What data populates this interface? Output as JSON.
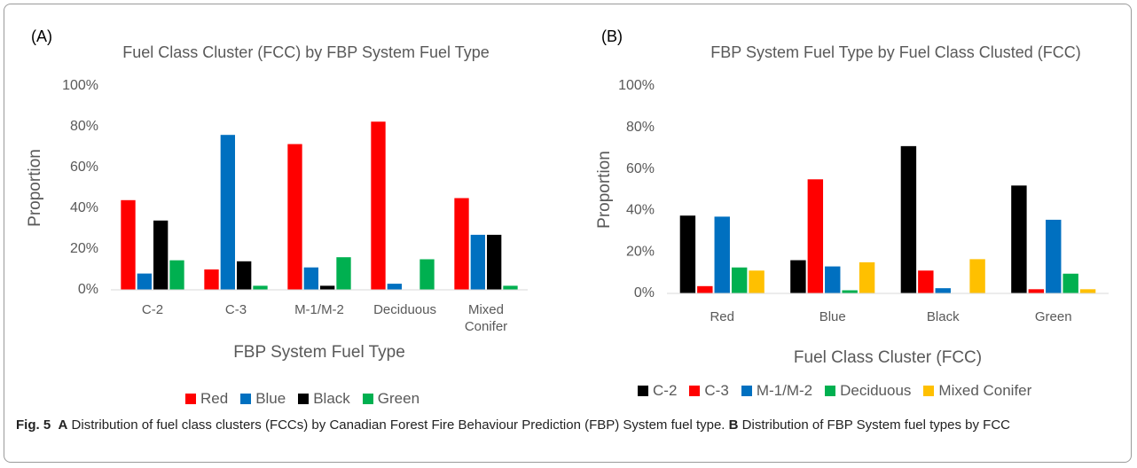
{
  "chart_data": [
    {
      "type": "bar",
      "panel_label": "(A)",
      "title": "Fuel Class Cluster (FCC) by FBP System Fuel Type",
      "x_label": "FBP System Fuel Type",
      "y_label": "Proportion",
      "categories": [
        "C-2",
        "C-3",
        "M-1/M-2",
        "Deciduous",
        "Mixed Conifer"
      ],
      "series": [
        {
          "name": "Red",
          "color": "#ff0000",
          "values": [
            44,
            10,
            71.5,
            82.5,
            45
          ]
        },
        {
          "name": "Blue",
          "color": "#0070c0",
          "values": [
            8,
            76,
            11,
            3,
            27
          ]
        },
        {
          "name": "Black",
          "color": "#000000",
          "values": [
            34,
            14,
            2,
            0,
            27
          ]
        },
        {
          "name": "Green",
          "color": "#00b050",
          "values": [
            14.5,
            2,
            16,
            15,
            2
          ]
        }
      ],
      "ylim": [
        0,
        100
      ],
      "yticks": [
        {
          "value": 0,
          "label": "0%"
        },
        {
          "value": 20,
          "label": "20%"
        },
        {
          "value": 40,
          "label": "40%"
        },
        {
          "value": 60,
          "label": "60%"
        },
        {
          "value": 80,
          "label": "80%"
        },
        {
          "value": 100,
          "label": "100%"
        }
      ],
      "grid": false,
      "legend": "bottom"
    },
    {
      "type": "bar",
      "panel_label": "(B)",
      "title": "FBP System Fuel Type by Fuel Class Clusted (FCC)",
      "x_label": "Fuel Class Cluster (FCC)",
      "y_label": "Proportion",
      "categories": [
        "Red",
        "Blue",
        "Black",
        "Green"
      ],
      "series": [
        {
          "name": "C-2",
          "color": "#000000",
          "values": [
            37.5,
            16,
            71,
            52
          ]
        },
        {
          "name": "C-3",
          "color": "#ff0000",
          "values": [
            3.5,
            55,
            11,
            2
          ]
        },
        {
          "name": "M-1/M-2",
          "color": "#0070c0",
          "values": [
            37,
            13,
            2.5,
            35.5
          ]
        },
        {
          "name": "Deciduous",
          "color": "#00b050",
          "values": [
            12.5,
            1.5,
            0,
            9.5
          ]
        },
        {
          "name": "Mixed Conifer",
          "color": "#ffc000",
          "values": [
            11,
            15,
            16.5,
            2
          ]
        }
      ],
      "ylim": [
        0,
        100
      ],
      "yticks": [
        {
          "value": 0,
          "label": "0%"
        },
        {
          "value": 20,
          "label": "20%"
        },
        {
          "value": 40,
          "label": "40%"
        },
        {
          "value": 60,
          "label": "60%"
        },
        {
          "value": 80,
          "label": "80%"
        },
        {
          "value": 100,
          "label": "100%"
        }
      ],
      "grid": false,
      "legend": "bottom"
    }
  ],
  "caption": {
    "label": "Fig. 5",
    "a_label": "A",
    "a_text": "Distribution of fuel class clusters (FCCs) by Canadian Forest Fire Behaviour Prediction (FBP) System fuel type.",
    "b_label": "B",
    "b_text": "Distribution of FBP System fuel types by FCC"
  }
}
